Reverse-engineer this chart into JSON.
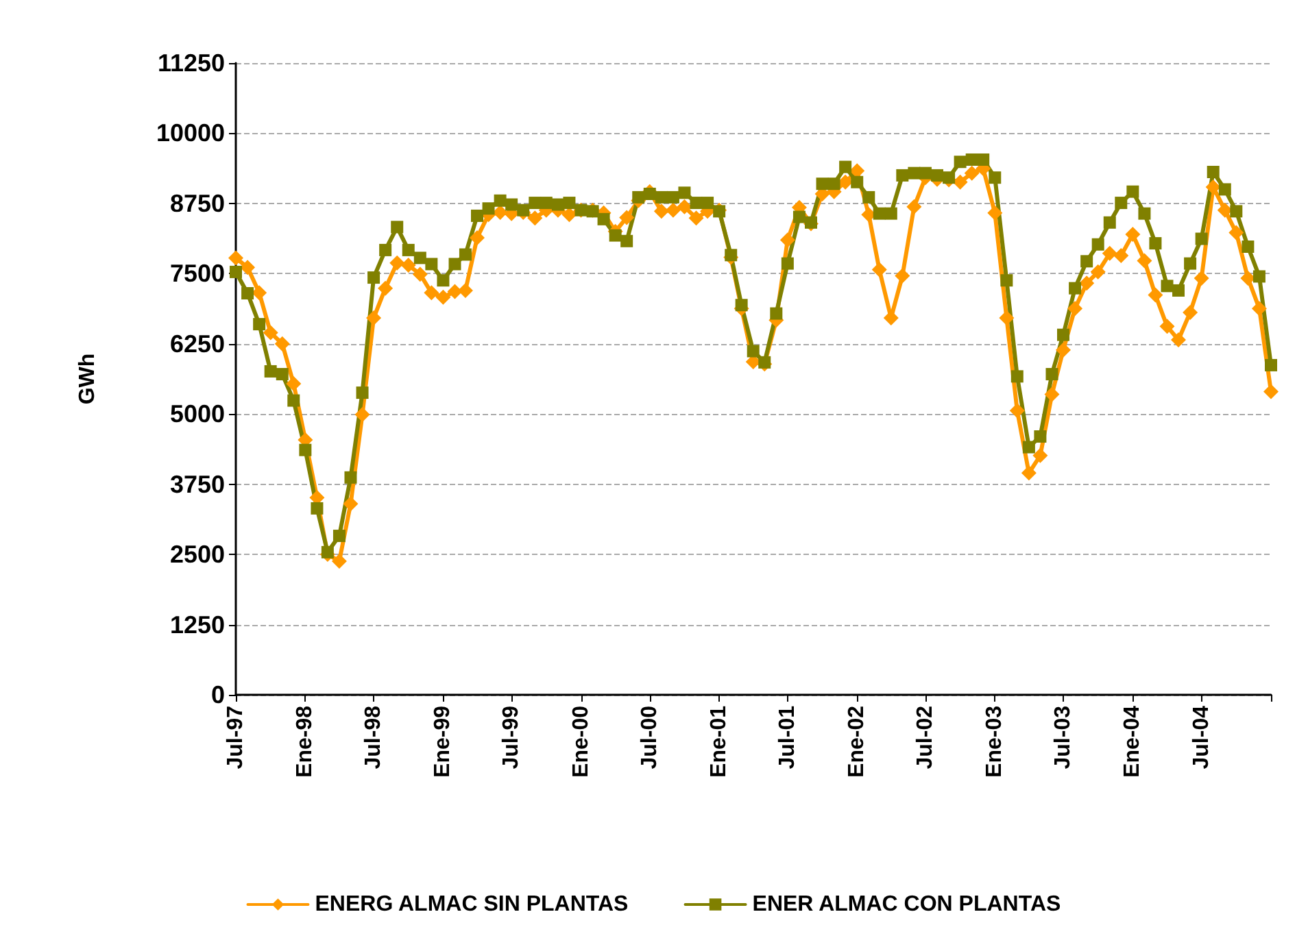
{
  "chart_data": {
    "type": "line",
    "ylabel": "GWh",
    "x": [
      "1997-07",
      "1997-08",
      "1997-09",
      "1997-10",
      "1997-11",
      "1997-12",
      "1998-01",
      "1998-02",
      "1998-03",
      "1998-04",
      "1998-05",
      "1998-06",
      "1998-07",
      "1998-08",
      "1998-09",
      "1998-10",
      "1998-11",
      "1998-12",
      "1999-01",
      "1999-02",
      "1999-03",
      "1999-04",
      "1999-05",
      "1999-06",
      "1999-07",
      "1999-08",
      "1999-09",
      "1999-10",
      "1999-11",
      "1999-12",
      "2000-01",
      "2000-02",
      "2000-03",
      "2000-04",
      "2000-05",
      "2000-06",
      "2000-07",
      "2000-08",
      "2000-09",
      "2000-10",
      "2000-11",
      "2000-12",
      "2001-01",
      "2001-02",
      "2001-03",
      "2001-04",
      "2001-05",
      "2001-06",
      "2001-07",
      "2001-08",
      "2001-09",
      "2001-10",
      "2001-11",
      "2001-12",
      "2002-01",
      "2002-02",
      "2002-03",
      "2002-04",
      "2002-05",
      "2002-06",
      "2002-07",
      "2002-08",
      "2002-09",
      "2002-10",
      "2002-11",
      "2002-12",
      "2003-01",
      "2003-02",
      "2003-03",
      "2003-04",
      "2003-05",
      "2003-06",
      "2003-07",
      "2003-08",
      "2003-09",
      "2003-10",
      "2003-11",
      "2003-12",
      "2004-01",
      "2004-02",
      "2004-03",
      "2004-04",
      "2004-05",
      "2004-06",
      "2004-07",
      "2004-08",
      "2004-09",
      "2004-10",
      "2004-11",
      "2004-12",
      "2005-01"
    ],
    "series": [
      {
        "name": "ENERG ALMAC SIN PLANTAS",
        "color": "#ff9900",
        "marker": "diamond",
        "values": [
          7780,
          7610,
          7160,
          6450,
          6250,
          5540,
          4540,
          3510,
          2500,
          2380,
          3400,
          4990,
          6710,
          7240,
          7690,
          7650,
          7490,
          7160,
          7080,
          7180,
          7200,
          8140,
          8550,
          8590,
          8570,
          8590,
          8490,
          8630,
          8630,
          8550,
          8630,
          8630,
          8580,
          8250,
          8500,
          8800,
          8960,
          8610,
          8630,
          8690,
          8490,
          8610,
          8630,
          7790,
          6880,
          5930,
          5890,
          6670,
          8100,
          8680,
          8390,
          8920,
          8960,
          9130,
          9330,
          8550,
          7570,
          6710,
          7460,
          8690,
          9210,
          9180,
          9170,
          9130,
          9290,
          9370,
          8580,
          6710,
          5060,
          3950,
          4260,
          5350,
          6140,
          6880,
          7330,
          7530,
          7860,
          7820,
          8200,
          7730,
          7120,
          6560,
          6320,
          6810,
          7420,
          9040,
          8630,
          8230,
          7420,
          6880,
          5400
        ]
      },
      {
        "name": "ENER ALMAC CON PLANTAS",
        "color": "#808000",
        "marker": "square",
        "values": [
          7530,
          7150,
          6600,
          5760,
          5710,
          5240,
          4360,
          3320,
          2540,
          2830,
          3870,
          5380,
          7430,
          7920,
          8330,
          7920,
          7780,
          7670,
          7380,
          7670,
          7840,
          8530,
          8660,
          8800,
          8730,
          8630,
          8760,
          8760,
          8730,
          8760,
          8630,
          8610,
          8470,
          8180,
          8080,
          8860,
          8920,
          8860,
          8860,
          8940,
          8760,
          8760,
          8610,
          7830,
          6940,
          6120,
          5920,
          6790,
          7680,
          8510,
          8410,
          9100,
          9100,
          9400,
          9130,
          8860,
          8570,
          8570,
          9250,
          9290,
          9290,
          9250,
          9210,
          9490,
          9530,
          9530,
          9210,
          7380,
          5670,
          4410,
          4600,
          5710,
          6410,
          7240,
          7720,
          8020,
          8410,
          8760,
          8960,
          8570,
          8040,
          7280,
          7200,
          7680,
          8120,
          9310,
          9000,
          8610,
          7980,
          7450,
          5870
        ]
      }
    ],
    "xlim": [
      "1997-07",
      "2005-01"
    ],
    "xticks": [
      {
        "value": "1997-07",
        "label": "Jul-97"
      },
      {
        "value": "1998-01",
        "label": "Ene-98"
      },
      {
        "value": "1998-07",
        "label": "Jul-98"
      },
      {
        "value": "1999-01",
        "label": "Ene-99"
      },
      {
        "value": "1999-07",
        "label": "Jul-99"
      },
      {
        "value": "2000-01",
        "label": "Ene-00"
      },
      {
        "value": "2000-07",
        "label": "Jul-00"
      },
      {
        "value": "2001-01",
        "label": "Ene-01"
      },
      {
        "value": "2001-07",
        "label": "Jul-01"
      },
      {
        "value": "2002-01",
        "label": "Ene-02"
      },
      {
        "value": "2002-07",
        "label": "Jul-02"
      },
      {
        "value": "2003-01",
        "label": "Ene-03"
      },
      {
        "value": "2003-07",
        "label": "Jul-03"
      },
      {
        "value": "2004-01",
        "label": "Ene-04"
      },
      {
        "value": "2004-07",
        "label": "Jul-04"
      },
      {
        "value": "2005-01",
        "label": null
      }
    ],
    "ylim": [
      0,
      11250
    ],
    "yticks": [
      0,
      1250,
      2500,
      3750,
      5000,
      6250,
      7500,
      8750,
      10000,
      11250
    ],
    "grid": "y",
    "line_style": "solid",
    "legend": "bottom"
  }
}
